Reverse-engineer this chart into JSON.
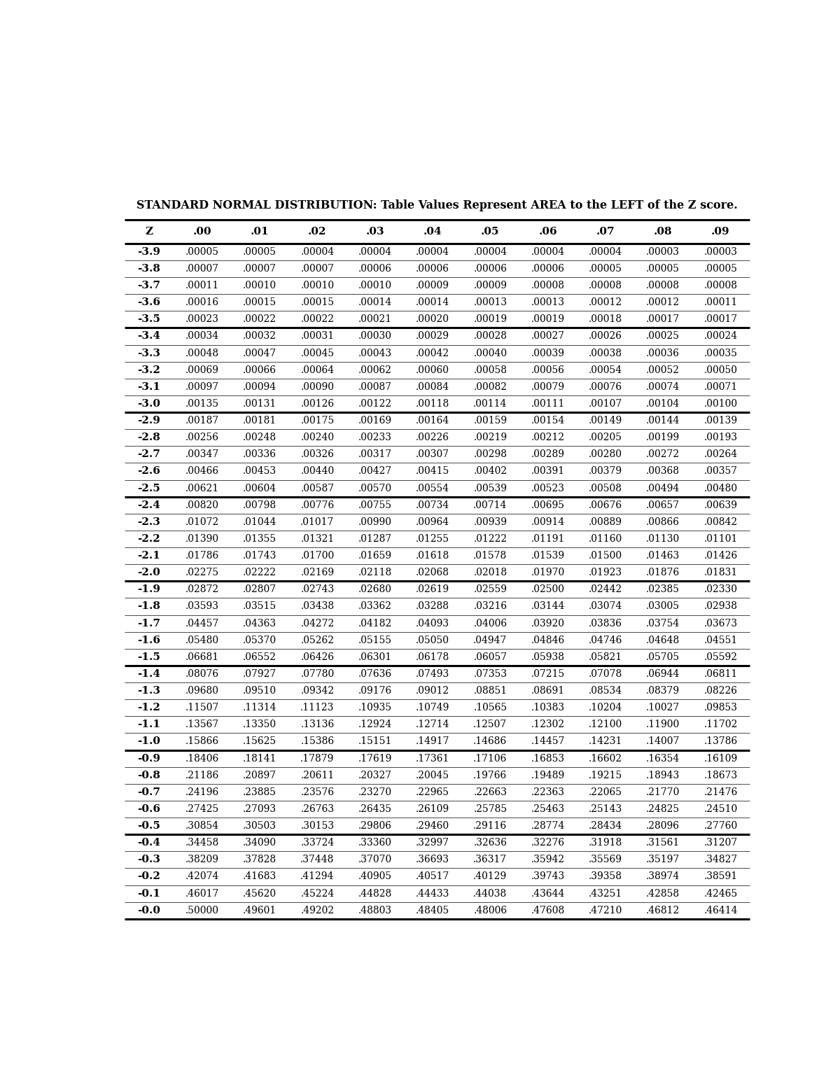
{
  "title": "STANDARD NORMAL DISTRIBUTION: Table Values Represent AREA to the LEFT of the Z score.",
  "columns": [
    "Z",
    ".00",
    ".01",
    ".02",
    ".03",
    ".04",
    ".05",
    ".06",
    ".07",
    ".08",
    ".09"
  ],
  "rows": [
    [
      "-3.9",
      ".00005",
      ".00005",
      ".00004",
      ".00004",
      ".00004",
      ".00004",
      ".00004",
      ".00004",
      ".00003",
      ".00003"
    ],
    [
      "-3.8",
      ".00007",
      ".00007",
      ".00007",
      ".00006",
      ".00006",
      ".00006",
      ".00006",
      ".00005",
      ".00005",
      ".00005"
    ],
    [
      "-3.7",
      ".00011",
      ".00010",
      ".00010",
      ".00010",
      ".00009",
      ".00009",
      ".00008",
      ".00008",
      ".00008",
      ".00008"
    ],
    [
      "-3.6",
      ".00016",
      ".00015",
      ".00015",
      ".00014",
      ".00014",
      ".00013",
      ".00013",
      ".00012",
      ".00012",
      ".00011"
    ],
    [
      "-3.5",
      ".00023",
      ".00022",
      ".00022",
      ".00021",
      ".00020",
      ".00019",
      ".00019",
      ".00018",
      ".00017",
      ".00017"
    ],
    [
      "-3.4",
      ".00034",
      ".00032",
      ".00031",
      ".00030",
      ".00029",
      ".00028",
      ".00027",
      ".00026",
      ".00025",
      ".00024"
    ],
    [
      "-3.3",
      ".00048",
      ".00047",
      ".00045",
      ".00043",
      ".00042",
      ".00040",
      ".00039",
      ".00038",
      ".00036",
      ".00035"
    ],
    [
      "-3.2",
      ".00069",
      ".00066",
      ".00064",
      ".00062",
      ".00060",
      ".00058",
      ".00056",
      ".00054",
      ".00052",
      ".00050"
    ],
    [
      "-3.1",
      ".00097",
      ".00094",
      ".00090",
      ".00087",
      ".00084",
      ".00082",
      ".00079",
      ".00076",
      ".00074",
      ".00071"
    ],
    [
      "-3.0",
      ".00135",
      ".00131",
      ".00126",
      ".00122",
      ".00118",
      ".00114",
      ".00111",
      ".00107",
      ".00104",
      ".00100"
    ],
    [
      "-2.9",
      ".00187",
      ".00181",
      ".00175",
      ".00169",
      ".00164",
      ".00159",
      ".00154",
      ".00149",
      ".00144",
      ".00139"
    ],
    [
      "-2.8",
      ".00256",
      ".00248",
      ".00240",
      ".00233",
      ".00226",
      ".00219",
      ".00212",
      ".00205",
      ".00199",
      ".00193"
    ],
    [
      "-2.7",
      ".00347",
      ".00336",
      ".00326",
      ".00317",
      ".00307",
      ".00298",
      ".00289",
      ".00280",
      ".00272",
      ".00264"
    ],
    [
      "-2.6",
      ".00466",
      ".00453",
      ".00440",
      ".00427",
      ".00415",
      ".00402",
      ".00391",
      ".00379",
      ".00368",
      ".00357"
    ],
    [
      "-2.5",
      ".00621",
      ".00604",
      ".00587",
      ".00570",
      ".00554",
      ".00539",
      ".00523",
      ".00508",
      ".00494",
      ".00480"
    ],
    [
      "-2.4",
      ".00820",
      ".00798",
      ".00776",
      ".00755",
      ".00734",
      ".00714",
      ".00695",
      ".00676",
      ".00657",
      ".00639"
    ],
    [
      "-2.3",
      ".01072",
      ".01044",
      ".01017",
      ".00990",
      ".00964",
      ".00939",
      ".00914",
      ".00889",
      ".00866",
      ".00842"
    ],
    [
      "-2.2",
      ".01390",
      ".01355",
      ".01321",
      ".01287",
      ".01255",
      ".01222",
      ".01191",
      ".01160",
      ".01130",
      ".01101"
    ],
    [
      "-2.1",
      ".01786",
      ".01743",
      ".01700",
      ".01659",
      ".01618",
      ".01578",
      ".01539",
      ".01500",
      ".01463",
      ".01426"
    ],
    [
      "-2.0",
      ".02275",
      ".02222",
      ".02169",
      ".02118",
      ".02068",
      ".02018",
      ".01970",
      ".01923",
      ".01876",
      ".01831"
    ],
    [
      "-1.9",
      ".02872",
      ".02807",
      ".02743",
      ".02680",
      ".02619",
      ".02559",
      ".02500",
      ".02442",
      ".02385",
      ".02330"
    ],
    [
      "-1.8",
      ".03593",
      ".03515",
      ".03438",
      ".03362",
      ".03288",
      ".03216",
      ".03144",
      ".03074",
      ".03005",
      ".02938"
    ],
    [
      "-1.7",
      ".04457",
      ".04363",
      ".04272",
      ".04182",
      ".04093",
      ".04006",
      ".03920",
      ".03836",
      ".03754",
      ".03673"
    ],
    [
      "-1.6",
      ".05480",
      ".05370",
      ".05262",
      ".05155",
      ".05050",
      ".04947",
      ".04846",
      ".04746",
      ".04648",
      ".04551"
    ],
    [
      "-1.5",
      ".06681",
      ".06552",
      ".06426",
      ".06301",
      ".06178",
      ".06057",
      ".05938",
      ".05821",
      ".05705",
      ".05592"
    ],
    [
      "-1.4",
      ".08076",
      ".07927",
      ".07780",
      ".07636",
      ".07493",
      ".07353",
      ".07215",
      ".07078",
      ".06944",
      ".06811"
    ],
    [
      "-1.3",
      ".09680",
      ".09510",
      ".09342",
      ".09176",
      ".09012",
      ".08851",
      ".08691",
      ".08534",
      ".08379",
      ".08226"
    ],
    [
      "-1.2",
      ".11507",
      ".11314",
      ".11123",
      ".10935",
      ".10749",
      ".10565",
      ".10383",
      ".10204",
      ".10027",
      ".09853"
    ],
    [
      "-1.1",
      ".13567",
      ".13350",
      ".13136",
      ".12924",
      ".12714",
      ".12507",
      ".12302",
      ".12100",
      ".11900",
      ".11702"
    ],
    [
      "-1.0",
      ".15866",
      ".15625",
      ".15386",
      ".15151",
      ".14917",
      ".14686",
      ".14457",
      ".14231",
      ".14007",
      ".13786"
    ],
    [
      "-0.9",
      ".18406",
      ".18141",
      ".17879",
      ".17619",
      ".17361",
      ".17106",
      ".16853",
      ".16602",
      ".16354",
      ".16109"
    ],
    [
      "-0.8",
      ".21186",
      ".20897",
      ".20611",
      ".20327",
      ".20045",
      ".19766",
      ".19489",
      ".19215",
      ".18943",
      ".18673"
    ],
    [
      "-0.7",
      ".24196",
      ".23885",
      ".23576",
      ".23270",
      ".22965",
      ".22663",
      ".22363",
      ".22065",
      ".21770",
      ".21476"
    ],
    [
      "-0.6",
      ".27425",
      ".27093",
      ".26763",
      ".26435",
      ".26109",
      ".25785",
      ".25463",
      ".25143",
      ".24825",
      ".24510"
    ],
    [
      "-0.5",
      ".30854",
      ".30503",
      ".30153",
      ".29806",
      ".29460",
      ".29116",
      ".28774",
      ".28434",
      ".28096",
      ".27760"
    ],
    [
      "-0.4",
      ".34458",
      ".34090",
      ".33724",
      ".33360",
      ".32997",
      ".32636",
      ".32276",
      ".31918",
      ".31561",
      ".31207"
    ],
    [
      "-0.3",
      ".38209",
      ".37828",
      ".37448",
      ".37070",
      ".36693",
      ".36317",
      ".35942",
      ".35569",
      ".35197",
      ".34827"
    ],
    [
      "-0.2",
      ".42074",
      ".41683",
      ".41294",
      ".40905",
      ".40517",
      ".40129",
      ".39743",
      ".39358",
      ".38974",
      ".38591"
    ],
    [
      "-0.1",
      ".46017",
      ".45620",
      ".45224",
      ".44828",
      ".44433",
      ".44038",
      ".43644",
      ".43251",
      ".42858",
      ".42465"
    ],
    [
      "-0.0",
      ".50000",
      ".49601",
      ".49202",
      ".48803",
      ".48405",
      ".48006",
      ".47608",
      ".47210",
      ".46812",
      ".46414"
    ]
  ],
  "thick_line_after": [
    4,
    9,
    14,
    19,
    24,
    29,
    34,
    39
  ],
  "bg_color": "#ffffff",
  "text_color": "#000000",
  "title_fontsize": 11.5,
  "header_fontsize": 11,
  "data_fontsize": 10,
  "fig_width": 12.0,
  "fig_height": 15.53
}
